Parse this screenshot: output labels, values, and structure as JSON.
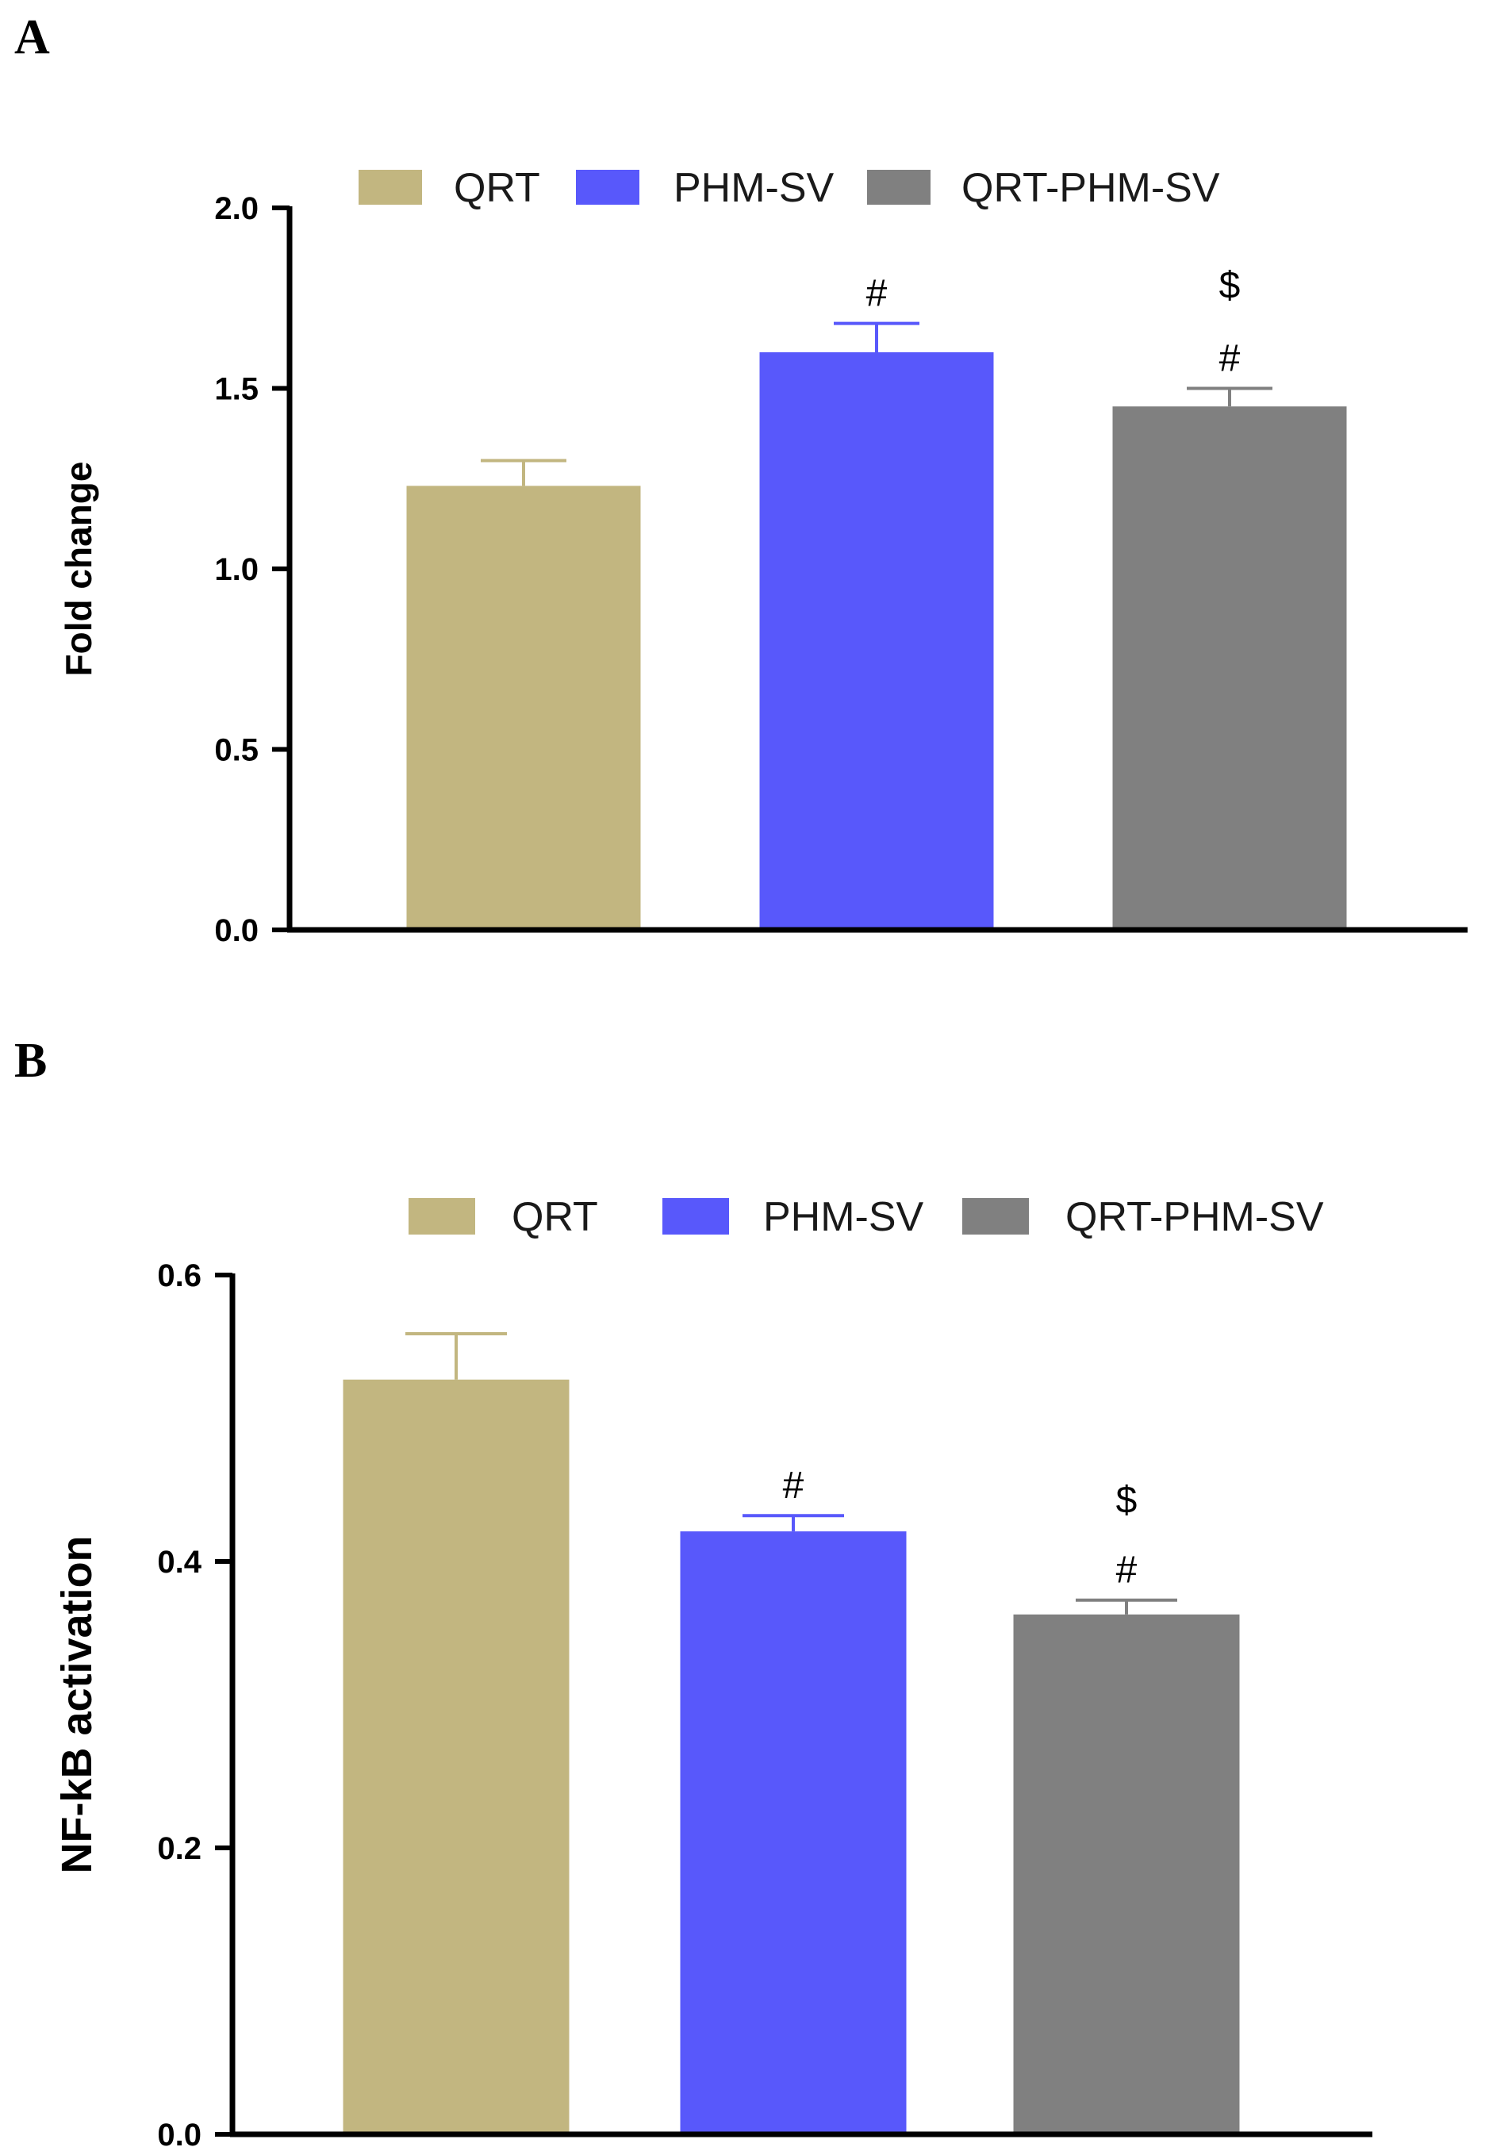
{
  "figure": {
    "panels": [
      "A",
      "B"
    ]
  },
  "colors": {
    "QRT": "#c2b680",
    "PHM-SV": "#5858fb",
    "QRT-PHM-SV": "#808080",
    "axis": "#000000"
  },
  "chart_data": [
    {
      "panel": "A",
      "type": "bar",
      "title": "",
      "xlabel": "",
      "ylabel": "Fold change",
      "ylim": [
        0,
        2.0
      ],
      "yticks": [
        0.0,
        0.5,
        1.0,
        1.5,
        2.0
      ],
      "ytick_labels": [
        "0.0",
        "0.5",
        "1.0",
        "1.5",
        "2.0"
      ],
      "legend": [
        "QRT",
        "PHM-SV",
        "QRT-PHM-SV"
      ],
      "categories": [
        "QRT",
        "PHM-SV",
        "QRT-PHM-SV"
      ],
      "values": [
        1.23,
        1.6,
        1.45
      ],
      "errors": [
        0.07,
        0.08,
        0.05
      ],
      "annotations": [
        [],
        [
          "#"
        ],
        [
          "$",
          "#"
        ]
      ]
    },
    {
      "panel": "B",
      "type": "bar",
      "title": "",
      "xlabel": "",
      "ylabel": "NF-kB activation",
      "ylim": [
        0,
        0.6
      ],
      "yticks": [
        0.0,
        0.2,
        0.4,
        0.6
      ],
      "ytick_labels": [
        "0.0",
        "0.2",
        "0.4",
        "0.6"
      ],
      "legend": [
        "QRT",
        "PHM-SV",
        "QRT-PHM-SV"
      ],
      "categories": [
        "QRT",
        "PHM-SV",
        "QRT-PHM-SV"
      ],
      "values": [
        0.527,
        0.421,
        0.363
      ],
      "errors": [
        0.032,
        0.011,
        0.01
      ],
      "annotations": [
        [],
        [
          "#"
        ],
        [
          "$",
          "#"
        ]
      ]
    }
  ]
}
